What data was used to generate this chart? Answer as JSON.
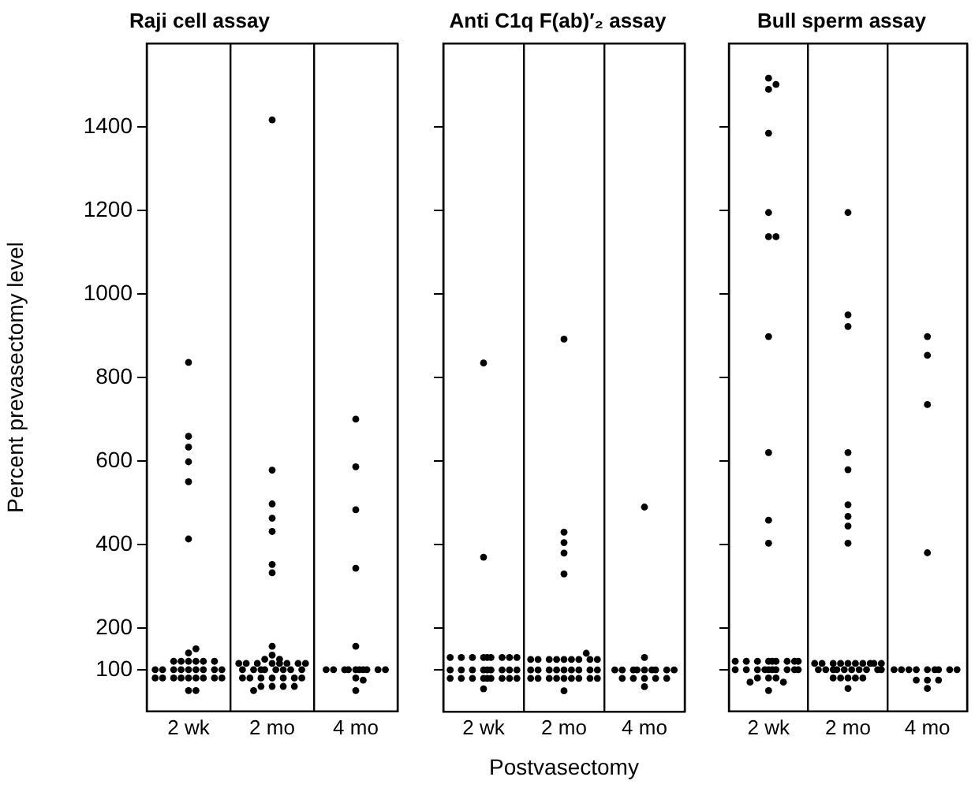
{
  "chart_data": [
    {
      "type": "scatter",
      "title": "Raji cell assay",
      "ylabel": "Percent prevasectomy level",
      "marker": "circle",
      "tick_labels": "xy",
      "grid": "x",
      "categories": [
        "2 wk",
        "2 mo",
        "4 mo"
      ],
      "ylim": [
        0,
        1600
      ],
      "yticks": [
        100,
        200,
        400,
        600,
        800,
        1000,
        1200,
        1400
      ],
      "series": [
        {
          "color": "#000000",
          "x": [
            "2 wk",
            "2 wk",
            "2 wk",
            "2 wk",
            "2 wk",
            "2 wk",
            "2 wk",
            "2 wk",
            "2 wk",
            "2 wk",
            "2 wk",
            "2 wk",
            "2 wk",
            "2 wk",
            "2 wk",
            "2 wk",
            "2 wk",
            "2 wk",
            "2 wk",
            "2 wk",
            "2 wk",
            "2 wk",
            "2 wk",
            "2 wk",
            "2 wk",
            "2 wk",
            "2 wk",
            "2 wk",
            "2 wk",
            "2 wk",
            "2 wk",
            "2 wk",
            "2 wk",
            "2 wk",
            "2 mo",
            "2 mo",
            "2 mo",
            "2 mo",
            "2 mo",
            "2 mo",
            "2 mo",
            "2 mo",
            "2 mo",
            "2 mo",
            "2 mo",
            "2 mo",
            "2 mo",
            "2 mo",
            "2 mo",
            "2 mo",
            "2 mo",
            "2 mo",
            "2 mo",
            "2 mo",
            "2 mo",
            "2 mo",
            "2 mo",
            "2 mo",
            "2 mo",
            "2 mo",
            "2 mo",
            "2 mo",
            "2 mo",
            "2 mo",
            "2 mo",
            "2 mo",
            "2 mo",
            "2 mo",
            "2 mo",
            "2 mo",
            "2 mo",
            "2 mo",
            "2 mo",
            "4 mo",
            "4 mo",
            "4 mo",
            "4 mo",
            "4 mo",
            "4 mo",
            "4 mo",
            "4 mo",
            "4 mo",
            "4 mo",
            "4 mo",
            "4 mo",
            "4 mo",
            "4 mo",
            "4 mo",
            "4 mo",
            "4 mo",
            "4 mo"
          ],
          "values": [
            836,
            659,
            633,
            598,
            550,
            413,
            120,
            120,
            120,
            120,
            120,
            120,
            140,
            150,
            100,
            100,
            100,
            100,
            100,
            100,
            100,
            100,
            100,
            80,
            80,
            80,
            80,
            80,
            80,
            80,
            80,
            80,
            50,
            50,
            1417,
            578,
            497,
            463,
            431,
            352,
            332,
            156,
            135,
            125,
            125,
            115,
            115,
            115,
            115,
            115,
            115,
            115,
            115,
            100,
            100,
            100,
            100,
            100,
            100,
            100,
            100,
            80,
            80,
            80,
            80,
            80,
            80,
            80,
            60,
            60,
            60,
            60,
            50,
            700,
            586,
            483,
            343,
            156,
            100,
            100,
            100,
            100,
            100,
            100,
            100,
            100,
            100,
            100,
            80,
            75,
            50
          ]
        }
      ]
    },
    {
      "type": "scatter",
      "title": "Anti C1q F(ab)′₂ assay",
      "xlabel": "Postvasectomy",
      "marker": "circle",
      "tick_labels": "x",
      "grid": "x",
      "categories": [
        "2 wk",
        "2 mo",
        "4 mo"
      ],
      "ylim": [
        0,
        1600
      ],
      "yticks": [
        100,
        200,
        400,
        600,
        800,
        1000,
        1200,
        1400
      ],
      "series": [
        {
          "color": "#000000",
          "x": [
            "2 wk",
            "2 wk",
            "2 wk",
            "2 wk",
            "2 wk",
            "2 wk",
            "2 wk",
            "2 wk",
            "2 wk",
            "2 wk",
            "2 wk",
            "2 wk",
            "2 wk",
            "2 wk",
            "2 wk",
            "2 wk",
            "2 wk",
            "2 wk",
            "2 wk",
            "2 wk",
            "2 wk",
            "2 wk",
            "2 wk",
            "2 wk",
            "2 wk",
            "2 wk",
            "2 wk",
            "2 wk",
            "2 wk",
            "2 wk",
            "2 mo",
            "2 mo",
            "2 mo",
            "2 mo",
            "2 mo",
            "2 mo",
            "2 mo",
            "2 mo",
            "2 mo",
            "2 mo",
            "2 mo",
            "2 mo",
            "2 mo",
            "2 mo",
            "2 mo",
            "2 mo",
            "2 mo",
            "2 mo",
            "2 mo",
            "2 mo",
            "2 mo",
            "2 mo",
            "2 mo",
            "2 mo",
            "2 mo",
            "2 mo",
            "2 mo",
            "2 mo",
            "2 mo",
            "2 mo",
            "2 mo",
            "2 mo",
            "2 mo",
            "2 mo",
            "4 mo",
            "4 mo",
            "4 mo",
            "4 mo",
            "4 mo",
            "4 mo",
            "4 mo",
            "4 mo",
            "4 mo",
            "4 mo",
            "4 mo",
            "4 mo",
            "4 mo",
            "4 mo",
            "4 mo",
            "4 mo",
            "4 mo"
          ],
          "values": [
            835,
            370,
            130,
            130,
            130,
            130,
            130,
            130,
            130,
            130,
            130,
            100,
            100,
            100,
            100,
            100,
            100,
            100,
            100,
            100,
            80,
            80,
            80,
            80,
            80,
            80,
            80,
            80,
            80,
            55,
            892,
            430,
            405,
            380,
            330,
            125,
            125,
            125,
            125,
            125,
            125,
            125,
            125,
            125,
            140,
            100,
            100,
            100,
            100,
            100,
            100,
            100,
            100,
            100,
            80,
            80,
            80,
            80,
            80,
            80,
            80,
            80,
            80,
            50,
            490,
            130,
            100,
            100,
            100,
            100,
            100,
            100,
            100,
            100,
            100,
            80,
            80,
            80,
            80,
            80,
            60
          ]
        }
      ]
    },
    {
      "type": "scatter",
      "title": "Bull sperm assay",
      "marker": "circle",
      "tick_labels": "x",
      "grid": "x",
      "categories": [
        "2 wk",
        "2 mo",
        "4 mo"
      ],
      "ylim": [
        0,
        1600
      ],
      "yticks": [
        100,
        200,
        400,
        600,
        800,
        1000,
        1200,
        1400
      ],
      "series": [
        {
          "color": "#000000",
          "x": [
            "2 wk",
            "2 wk",
            "2 wk",
            "2 wk",
            "2 wk",
            "2 wk",
            "2 wk",
            "2 wk",
            "2 wk",
            "2 wk",
            "2 wk",
            "2 wk",
            "2 wk",
            "2 wk",
            "2 wk",
            "2 wk",
            "2 wk",
            "2 wk",
            "2 wk",
            "2 wk",
            "2 wk",
            "2 wk",
            "2 wk",
            "2 wk",
            "2 wk",
            "2 wk",
            "2 wk",
            "2 wk",
            "2 wk",
            "2 wk",
            "2 wk",
            "2 wk",
            "2 wk",
            "2 wk",
            "2 wk",
            "2 wk",
            "2 mo",
            "2 mo",
            "2 mo",
            "2 mo",
            "2 mo",
            "2 mo",
            "2 mo",
            "2 mo",
            "2 mo",
            "2 mo",
            "2 mo",
            "2 mo",
            "2 mo",
            "2 mo",
            "2 mo",
            "2 mo",
            "2 mo",
            "2 mo",
            "2 mo",
            "2 mo",
            "2 mo",
            "2 mo",
            "2 mo",
            "2 mo",
            "2 mo",
            "2 mo",
            "2 mo",
            "2 mo",
            "2 mo",
            "2 mo",
            "2 mo",
            "2 mo",
            "2 mo",
            "2 mo",
            "2 mo",
            "4 mo",
            "4 mo",
            "4 mo",
            "4 mo",
            "4 mo",
            "4 mo",
            "4 mo",
            "4 mo",
            "4 mo",
            "4 mo",
            "4 mo",
            "4 mo",
            "4 mo",
            "4 mo",
            "4 mo",
            "4 mo",
            "4 mo"
          ],
          "values": [
            1517,
            1502,
            1490,
            1385,
            1195,
            1137,
            1137,
            898,
            620,
            458,
            403,
            120,
            120,
            120,
            120,
            120,
            120,
            120,
            120,
            120,
            100,
            100,
            100,
            100,
            100,
            100,
            100,
            100,
            100,
            100,
            80,
            80,
            80,
            70,
            70,
            50,
            1195,
            950,
            922,
            620,
            579,
            495,
            467,
            444,
            403,
            115,
            115,
            115,
            115,
            115,
            115,
            115,
            115,
            115,
            115,
            100,
            100,
            100,
            100,
            100,
            100,
            100,
            100,
            100,
            100,
            80,
            80,
            80,
            80,
            80,
            55,
            898,
            853,
            735,
            380,
            100,
            100,
            100,
            100,
            100,
            100,
            100,
            100,
            100,
            75,
            75,
            75,
            55
          ]
        }
      ]
    }
  ]
}
